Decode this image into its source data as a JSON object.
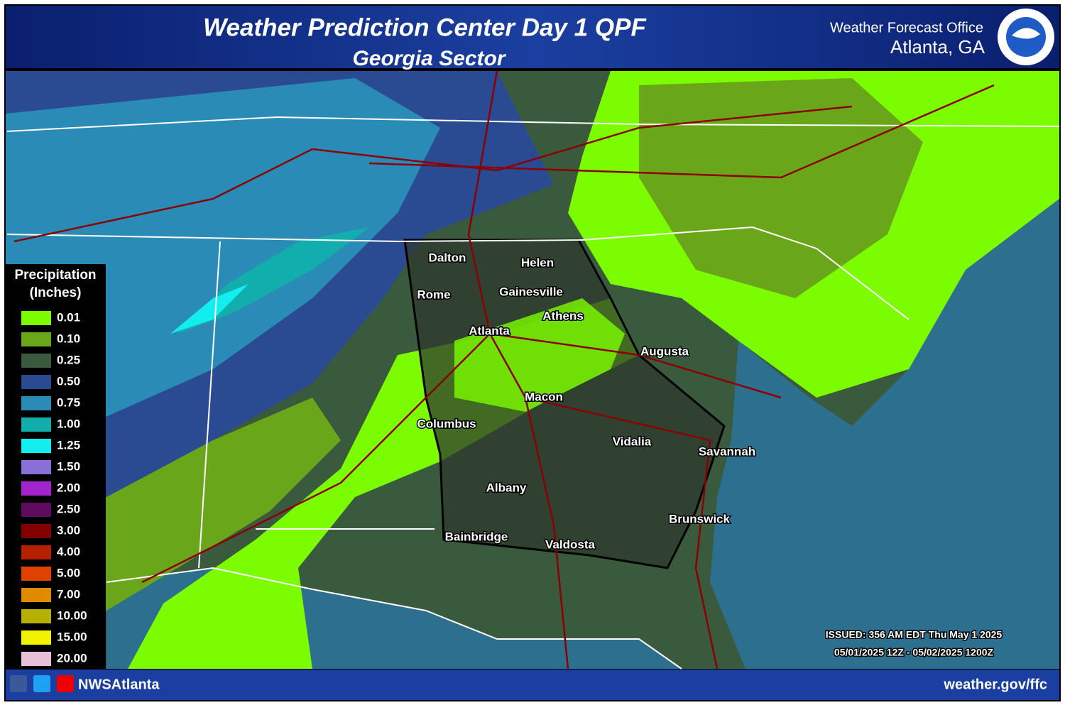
{
  "header": {
    "title": "Weather Prediction Center Day 1 QPF",
    "subtitle": "Georgia Sector",
    "office": "Weather Forecast Office",
    "location": "Atlanta, GA"
  },
  "legend": {
    "title": "Precipitation",
    "units": "(Inches)",
    "items": [
      {
        "label": "0.01",
        "color": "#7cfc00"
      },
      {
        "label": "0.10",
        "color": "#6aa61a"
      },
      {
        "label": "0.25",
        "color": "#3a5a3e"
      },
      {
        "label": "0.50",
        "color": "#2a4a92"
      },
      {
        "label": "0.75",
        "color": "#2a8cb6"
      },
      {
        "label": "1.00",
        "color": "#12adad"
      },
      {
        "label": "1.25",
        "color": "#12eeee"
      },
      {
        "label": "1.50",
        "color": "#8a70d6"
      },
      {
        "label": "2.00",
        "color": "#a224cc"
      },
      {
        "label": "2.50",
        "color": "#5e0a5e"
      },
      {
        "label": "3.00",
        "color": "#820000"
      },
      {
        "label": "4.00",
        "color": "#b42000"
      },
      {
        "label": "5.00",
        "color": "#e04000"
      },
      {
        "label": "7.00",
        "color": "#e08a00"
      },
      {
        "label": "10.00",
        "color": "#b6b000"
      },
      {
        "label": "15.00",
        "color": "#f2f200"
      },
      {
        "label": "20.00",
        "color": "#e6c0d6"
      }
    ]
  },
  "cities": [
    "Dalton",
    "Helen",
    "Rome",
    "Gainesville",
    "Athens",
    "Atlanta",
    "Augusta",
    "Macon",
    "Columbus",
    "Vidalia",
    "Savannah",
    "Albany",
    "Brunswick",
    "Bainbridge",
    "Valdosta"
  ],
  "issued": "ISSUED: 356 AM EDT Thu May 1 2025",
  "valid": "05/01/2025 12Z - 05/02/2025 1200Z",
  "footer": {
    "handle": "NWSAtlanta",
    "url": "weather.gov/ffc"
  }
}
